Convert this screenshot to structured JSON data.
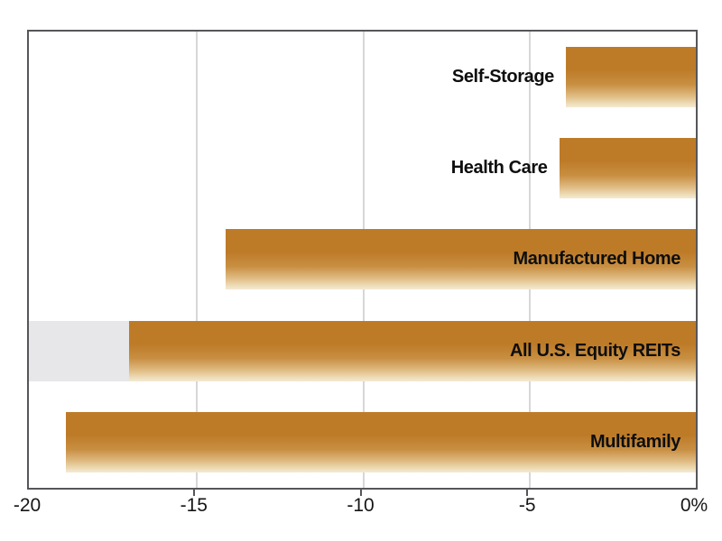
{
  "chart_data": {
    "type": "bar",
    "orientation": "horizontal",
    "title": "",
    "xlabel": "",
    "ylabel": "",
    "xlim": [
      -20,
      0
    ],
    "x_tick_values": [
      -20,
      -15,
      -10,
      -5,
      0
    ],
    "x_ticks": [
      "-20",
      "-15",
      "-10",
      "-5",
      "0%"
    ],
    "grid": "vertical-gridlines-on",
    "legend": "none",
    "categories": [
      "Self-Storage",
      "Health Care",
      "Manufactured Home",
      "All U.S. Equity REITs",
      "Multifamily"
    ],
    "values": [
      -3.9,
      -4.1,
      -14.1,
      -17.0,
      -18.9
    ],
    "bars": [
      {
        "label": "Self-Storage",
        "value": -3.9,
        "label_inside": false
      },
      {
        "label": "Health Care",
        "value": -4.1,
        "label_inside": false
      },
      {
        "label": "Manufactured Home",
        "value": -14.1,
        "label_inside": true
      },
      {
        "label": "All U.S. Equity REITs",
        "value": -17.0,
        "label_inside": true,
        "background_bar": {
          "from": -20,
          "to": -17
        }
      },
      {
        "label": "Multifamily",
        "value": -18.9,
        "label_inside": true
      }
    ],
    "colors": {
      "bar_gradient_top": "#bd7b28",
      "bar_gradient_bottom": "#f4ead2",
      "background_bar": "#e7e7e9",
      "gridline": "#d7d7d7",
      "border_axis": "#55565a",
      "label_text": "#0e0e0e"
    }
  }
}
